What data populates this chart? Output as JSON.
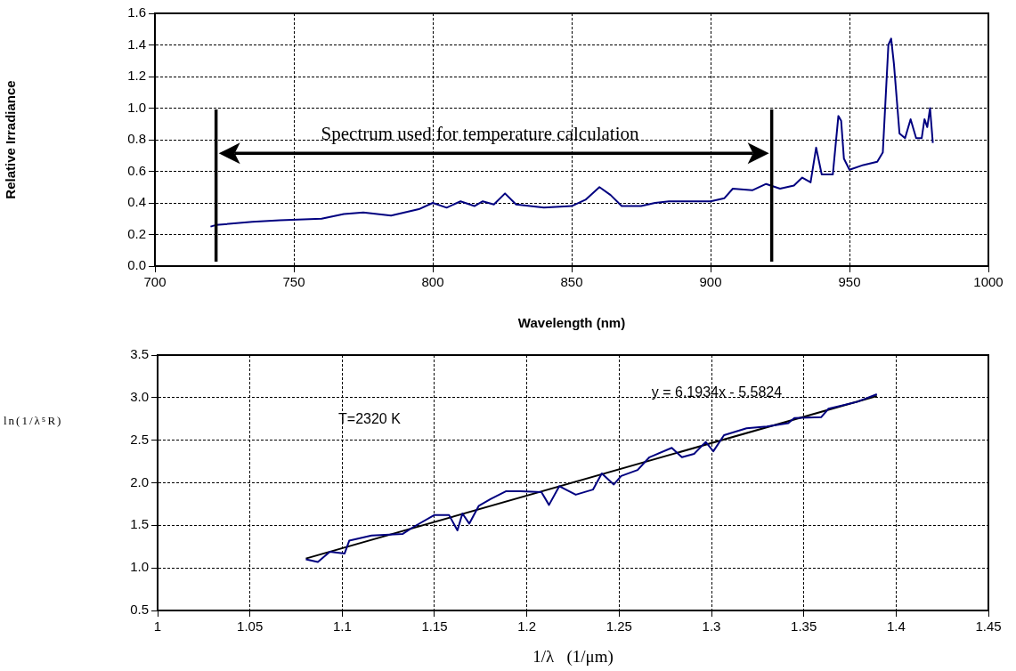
{
  "chart_data": [
    {
      "type": "line",
      "xlabel": "Wavelength (nm)",
      "ylabel": "Relative Irradiance",
      "series": [
        {
          "color": "#000080",
          "x": [
            720,
            722,
            735,
            745,
            760,
            768,
            775,
            785,
            795,
            800,
            805,
            810,
            815,
            818,
            822,
            826,
            830,
            840,
            850,
            855,
            860,
            864,
            868,
            875,
            880,
            885,
            895,
            900,
            905,
            908,
            915,
            920,
            925,
            930,
            933,
            936,
            938,
            940,
            944,
            946,
            947,
            948,
            950,
            955,
            960,
            962,
            964,
            965,
            966,
            968,
            970,
            972,
            974,
            976,
            977,
            978,
            979,
            980
          ],
          "values": [
            0.25,
            0.26,
            0.28,
            0.29,
            0.3,
            0.33,
            0.34,
            0.32,
            0.36,
            0.4,
            0.37,
            0.41,
            0.38,
            0.41,
            0.39,
            0.46,
            0.39,
            0.37,
            0.38,
            0.42,
            0.5,
            0.45,
            0.38,
            0.38,
            0.4,
            0.41,
            0.41,
            0.41,
            0.43,
            0.49,
            0.48,
            0.52,
            0.49,
            0.51,
            0.56,
            0.53,
            0.75,
            0.58,
            0.58,
            0.95,
            0.92,
            0.68,
            0.61,
            0.64,
            0.66,
            0.72,
            1.4,
            1.44,
            1.28,
            0.84,
            0.81,
            0.93,
            0.81,
            0.81,
            0.93,
            0.88,
            1.0,
            0.78
          ]
        }
      ],
      "xlim": [
        700,
        1000
      ],
      "xticks": [
        700,
        750,
        800,
        850,
        900,
        950,
        1000
      ],
      "ylim": [
        0,
        1.6
      ],
      "yticks": [
        {
          "value": 0,
          "label": "0.0"
        },
        {
          "value": 0.2,
          "label": "0.2"
        },
        {
          "value": 0.4,
          "label": "0.4"
        },
        {
          "value": 0.6,
          "label": "0.6"
        },
        {
          "value": 0.8,
          "label": "0.8"
        },
        {
          "value": 1,
          "label": "1.0"
        },
        {
          "value": 1.2,
          "label": "1.2"
        },
        {
          "value": 1.4,
          "label": "1.4"
        },
        {
          "value": 1.6,
          "label": "1.6"
        }
      ],
      "ref_lines": [
        {
          "axis": "x",
          "value": 722,
          "color": "#000000"
        },
        {
          "axis": "x",
          "value": 922,
          "color": "#000000"
        }
      ],
      "annotations": [
        "Spectrum used for temperature calculation"
      ],
      "grid": true,
      "legend": false,
      "marker": "none",
      "line_style": "solid"
    },
    {
      "type": "line",
      "xlabel": "1/λ   (1/μm)",
      "ylabel": "ln(1/λ⁵R)",
      "series": [
        {
          "color": "#000080",
          "x": [
            1.0803,
            1.0868,
            1.0933,
            1.1013,
            1.1038,
            1.1159,
            1.1328,
            1.1385,
            1.1498,
            1.1579,
            1.1624,
            1.1651,
            1.1688,
            1.174,
            1.1805,
            1.1886,
            1.1966,
            1.2079,
            1.212,
            1.2176,
            1.2265,
            1.2358,
            1.2406,
            1.2471,
            1.2511,
            1.26,
            1.2664,
            1.2785,
            1.284,
            1.2906,
            1.2969,
            1.301,
            1.3068,
            1.319,
            1.33,
            1.3416,
            1.3449,
            1.3594,
            1.3634,
            1.3788,
            1.3896
          ],
          "values": [
            1.1,
            1.07,
            1.19,
            1.17,
            1.32,
            1.38,
            1.4,
            1.48,
            1.62,
            1.62,
            1.44,
            1.64,
            1.52,
            1.73,
            1.81,
            1.9,
            1.9,
            1.89,
            1.74,
            1.96,
            1.86,
            1.92,
            2.11,
            1.98,
            2.08,
            2.15,
            2.3,
            2.41,
            2.3,
            2.34,
            2.48,
            2.37,
            2.56,
            2.64,
            2.66,
            2.7,
            2.76,
            2.77,
            2.87,
            2.95,
            3.04
          ]
        },
        {
          "color": "#000000",
          "x": [
            1.0803,
            1.3896
          ],
          "values": [
            1.11,
            3.02
          ]
        }
      ],
      "xlim": [
        1,
        1.45
      ],
      "xticks": [
        1,
        1.05,
        1.1,
        1.15,
        1.2,
        1.25,
        1.3,
        1.35,
        1.4,
        1.45
      ],
      "ylim": [
        0.5,
        3.5
      ],
      "yticks": [
        {
          "value": 0.5,
          "label": "0.5"
        },
        {
          "value": 1,
          "label": "1.0"
        },
        {
          "value": 1.5,
          "label": "1.5"
        },
        {
          "value": 2,
          "label": "2.0"
        },
        {
          "value": 2.5,
          "label": "2.5"
        },
        {
          "value": 3,
          "label": "3.0"
        },
        {
          "value": 3.5,
          "label": "3.5"
        }
      ],
      "annotations": [
        "y = 6.1934x - 5.5824",
        "T=2320 K"
      ],
      "grid": true,
      "legend": false,
      "marker": "none",
      "line_style": "solid"
    }
  ]
}
